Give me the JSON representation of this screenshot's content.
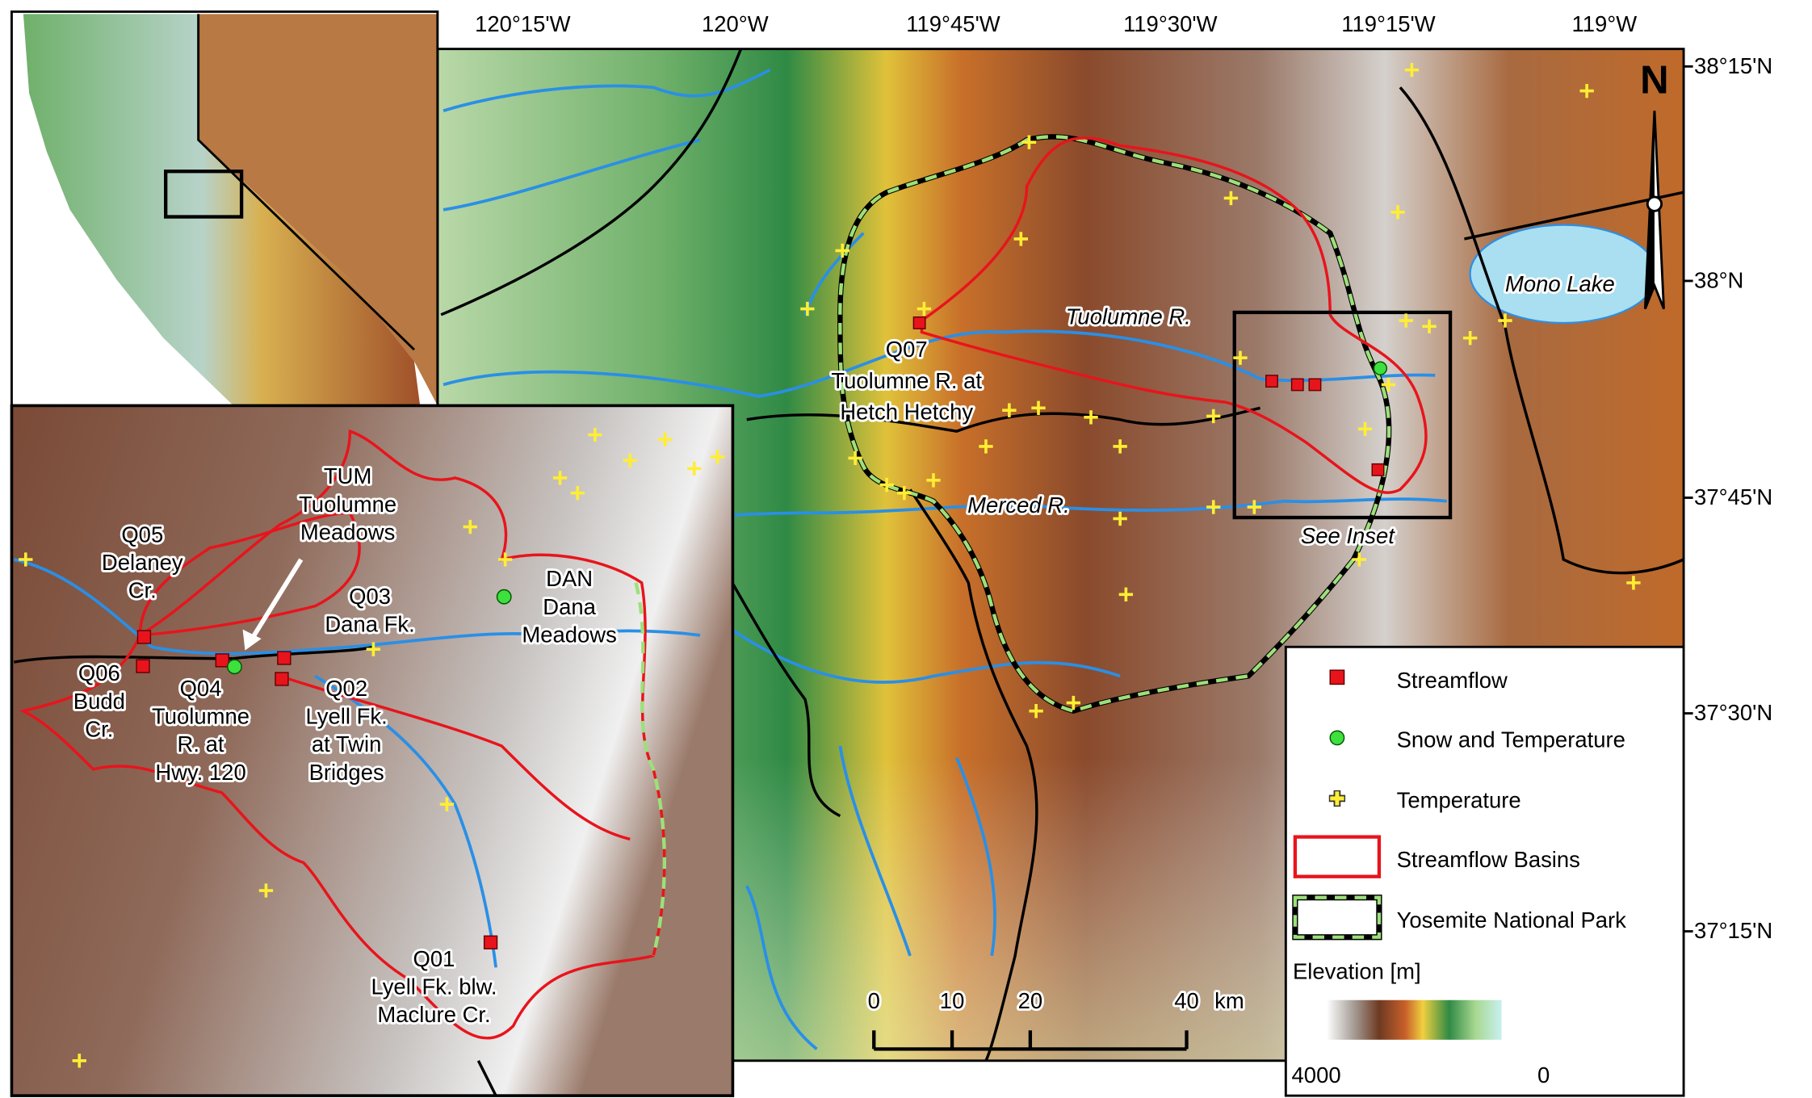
{
  "main_map": {
    "longitude_labels": [
      "120°15'W",
      "120°W",
      "119°45'W",
      "119°30'W",
      "119°15'W",
      "119°W"
    ],
    "latitude_labels": [
      "38°15'N",
      "38°N",
      "37°45'N",
      "37°30'N",
      "37°15'N"
    ],
    "north_arrow": "N",
    "labels": [
      [
        "Tuolumne R."
      ],
      [
        "Merced R."
      ],
      [
        "Mono Lake"
      ],
      [
        "See Inset"
      ],
      [
        "Q07",
        "Tuolumne R. at",
        "Hetch Hetchy"
      ]
    ]
  },
  "inset": {
    "labels": [
      [
        "TUM",
        "Tuolumne",
        "Meadows"
      ],
      [
        "Q05",
        "Delaney",
        "Cr."
      ],
      [
        "Q03",
        "Dana Fk."
      ],
      [
        "DAN",
        "Dana",
        "Meadows"
      ],
      [
        "Q06",
        "Budd",
        "Cr."
      ],
      [
        "Q04",
        "Tuolumne",
        "R. at",
        "Hwy. 120"
      ],
      [
        "Q02",
        "Lyell Fk.",
        "at Twin",
        "Bridges"
      ],
      [
        "Q01",
        "Lyell Fk. blw.",
        "Maclure Cr."
      ]
    ]
  },
  "scale_bar": {
    "ticks": [
      0,
      10,
      20,
      40
    ],
    "unit": "km"
  },
  "legend": {
    "items": [
      "Streamflow",
      "Snow and Temperature",
      "Temperature",
      "Streamflow Basins",
      "Yosemite National Park"
    ],
    "elevation_title": "Elevation [m]",
    "elevation_range": [
      4000,
      0
    ]
  }
}
